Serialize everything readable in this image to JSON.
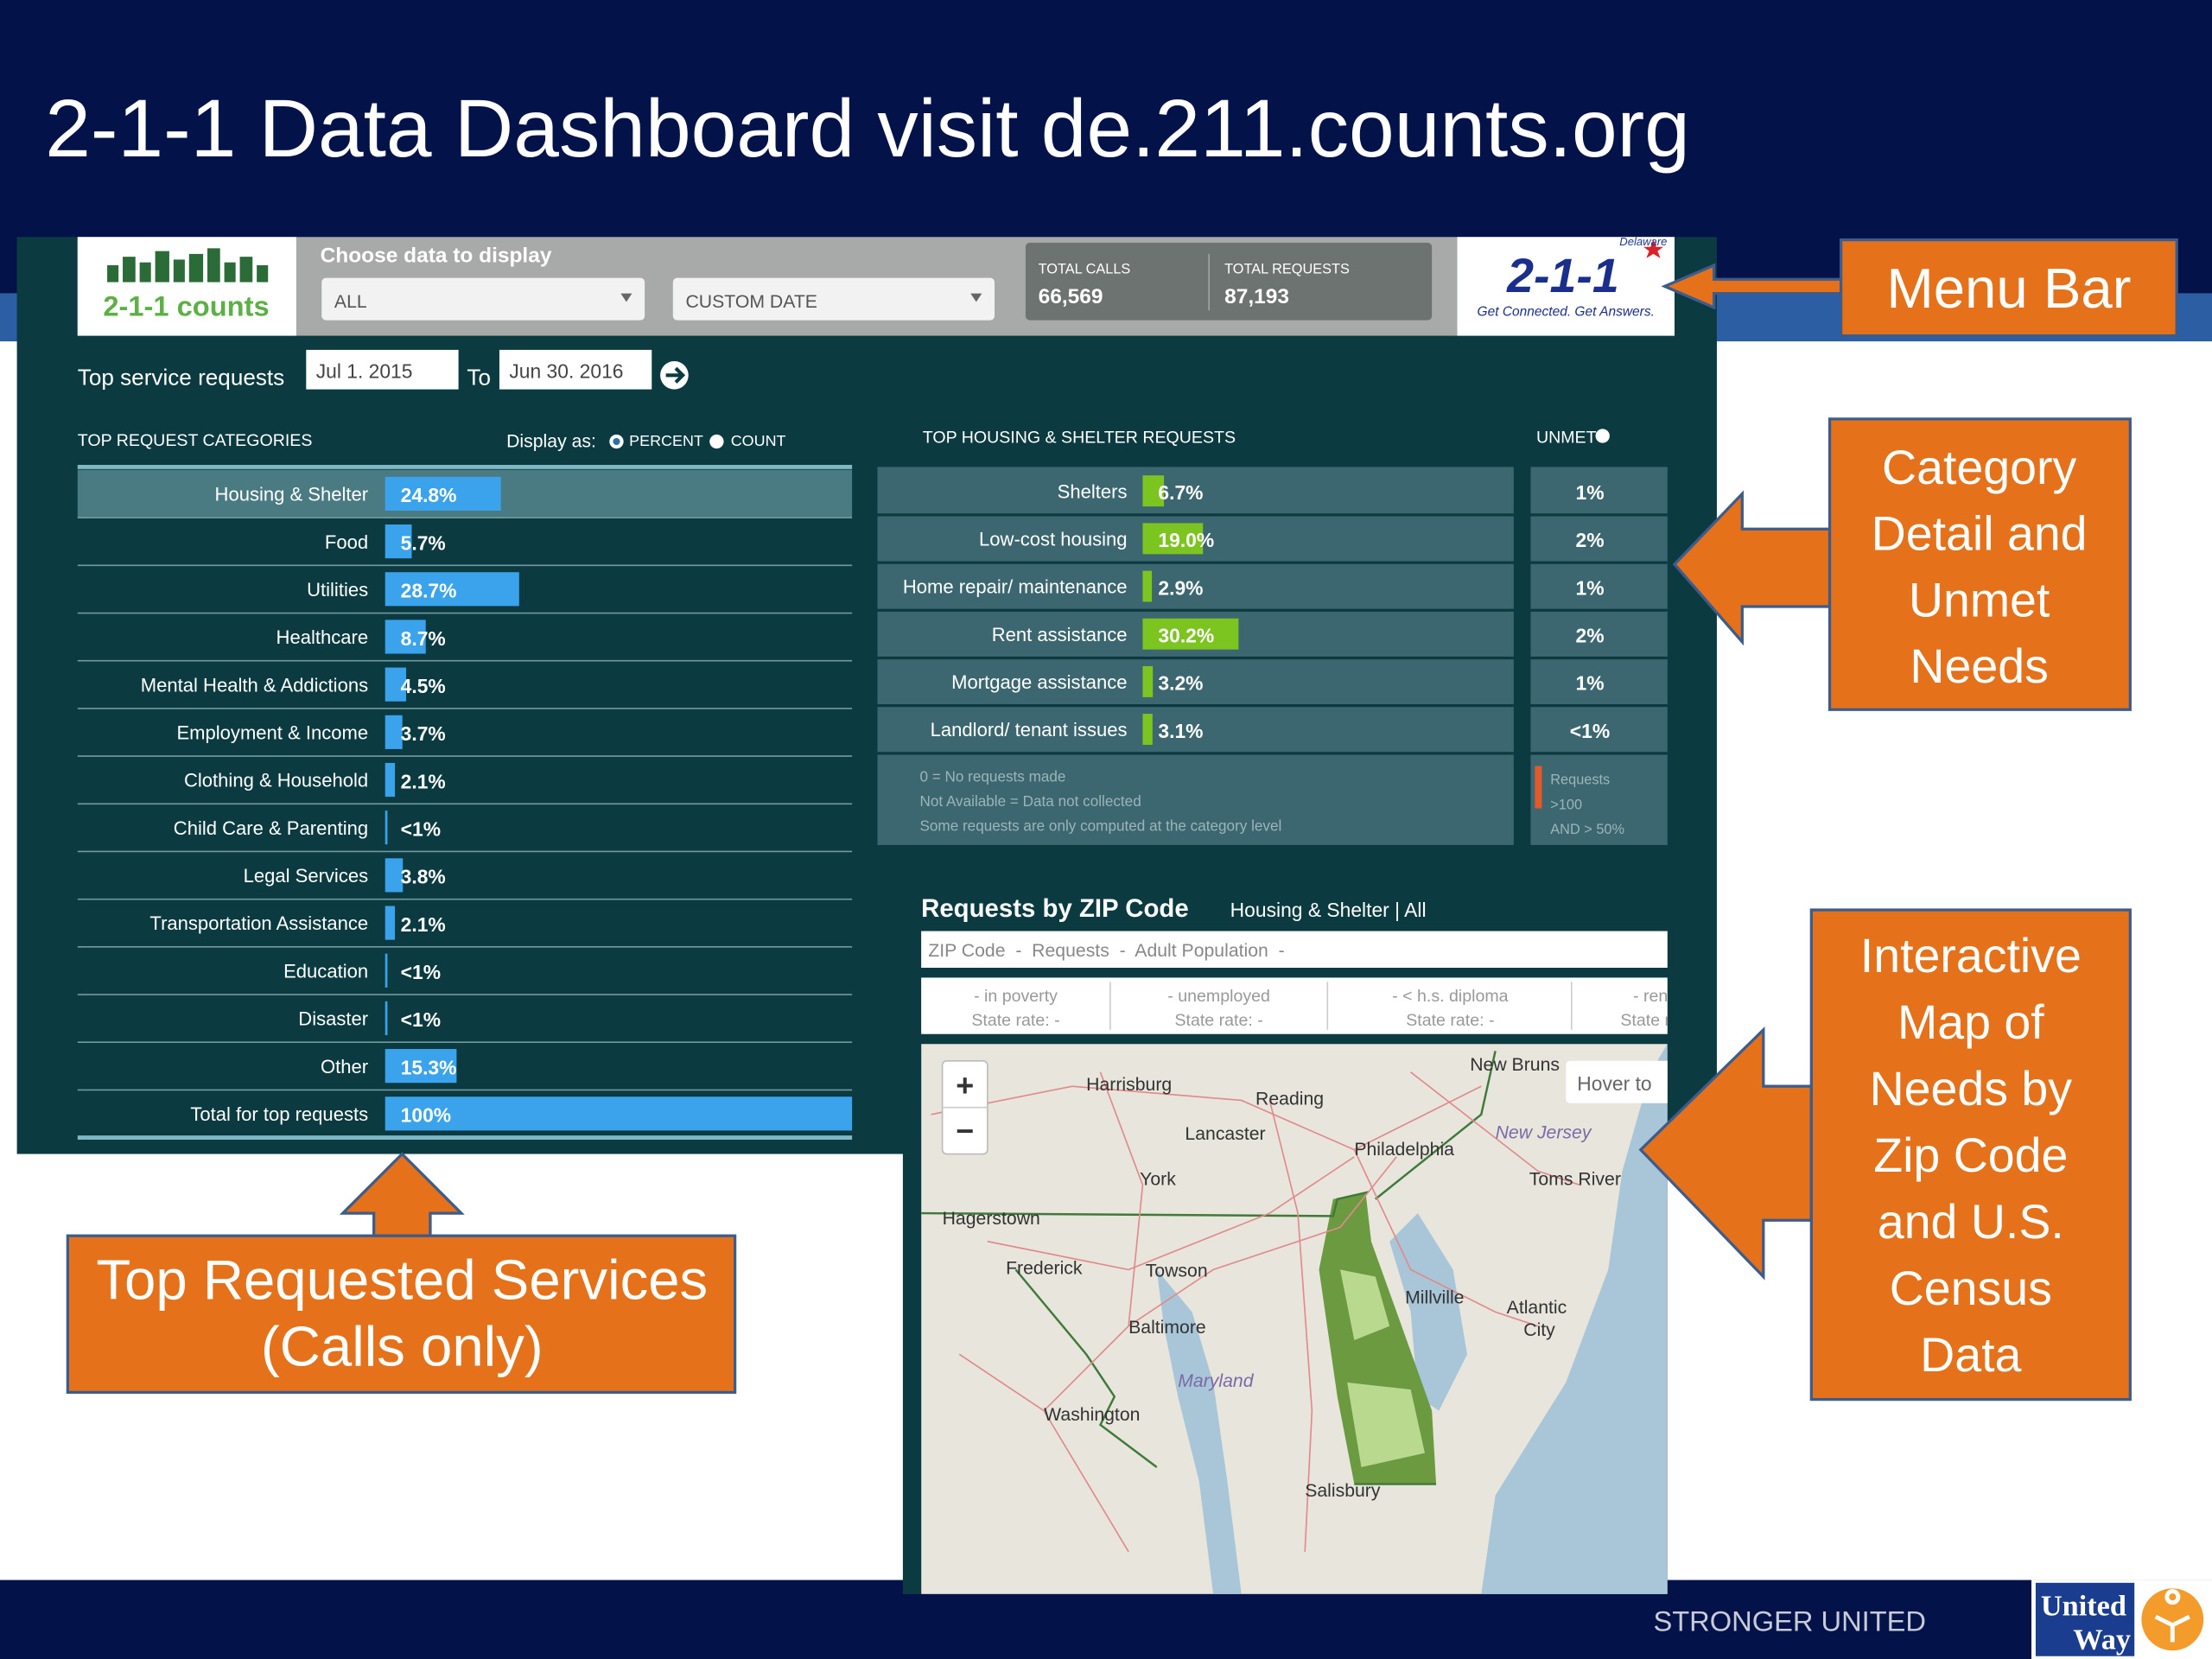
{
  "slide": {
    "title": "2-1-1 Data Dashboard visit de.211.counts.org",
    "footer": "STRONGER UNITED",
    "logo": [
      "United",
      "Way"
    ]
  },
  "menu_bar": {
    "logo": "2-1-1 counts",
    "prompt": "Choose data to display",
    "dropdowns": [
      "ALL",
      "CUSTOM DATE"
    ],
    "totals": [
      {
        "label": "TOTAL CALLS",
        "value": "66,569"
      },
      {
        "label": "TOTAL REQUESTS",
        "value": "87,193"
      }
    ],
    "brand": {
      "state": "Delaware",
      "name": "2-1-1",
      "tagline": "Get Connected. Get Answers."
    }
  },
  "filters": {
    "label": "Top service requests",
    "from": "Jul 1. 2015",
    "to_label": "To",
    "to": "Jun 30. 2016"
  },
  "categories": {
    "title": "TOP REQUEST CATEGORIES",
    "display_label": "Display as:",
    "options": [
      "PERCENT",
      "COUNT"
    ],
    "color": "#3aa3ec",
    "rows": [
      {
        "name": "Housing & Shelter",
        "value": 24.8,
        "value_label": "24.8%"
      },
      {
        "name": "Food",
        "value": 5.7,
        "value_label": "5.7%"
      },
      {
        "name": "Utilities",
        "value": 28.7,
        "value_label": "28.7%"
      },
      {
        "name": "Healthcare",
        "value": 8.7,
        "value_label": "8.7%"
      },
      {
        "name": "Mental Health & Addictions",
        "value": 4.5,
        "value_label": "4.5%"
      },
      {
        "name": "Employment & Income",
        "value": 3.7,
        "value_label": "3.7%"
      },
      {
        "name": "Clothing & Household",
        "value": 2.1,
        "value_label": "2.1%"
      },
      {
        "name": "Child Care & Parenting",
        "value": 0.5,
        "value_label": "<1%"
      },
      {
        "name": "Legal Services",
        "value": 3.8,
        "value_label": "3.8%"
      },
      {
        "name": "Transportation Assistance",
        "value": 2.1,
        "value_label": "2.1%"
      },
      {
        "name": "Education",
        "value": 0.5,
        "value_label": "<1%"
      },
      {
        "name": "Disaster",
        "value": 0.5,
        "value_label": "<1%"
      },
      {
        "name": "Other",
        "value": 15.3,
        "value_label": "15.3%"
      },
      {
        "name": "Total for top requests",
        "value": 100,
        "value_label": "100%"
      }
    ]
  },
  "housing": {
    "title": "TOP HOUSING & SHELTER REQUESTS",
    "unmet_title": "UNMET",
    "color": "#7cc520",
    "rows": [
      {
        "name": "Shelters",
        "value": 6.7,
        "value_label": "6.7%",
        "unmet": "1%"
      },
      {
        "name": "Low-cost housing",
        "value": 19.0,
        "value_label": "19.0%",
        "unmet": "2%"
      },
      {
        "name": "Home repair/ maintenance",
        "value": 2.9,
        "value_label": "2.9%",
        "unmet": "1%"
      },
      {
        "name": "Rent assistance",
        "value": 30.2,
        "value_label": "30.2%",
        "unmet": "2%"
      },
      {
        "name": "Mortgage assistance",
        "value": 3.2,
        "value_label": "3.2%",
        "unmet": "1%"
      },
      {
        "name": "Landlord/ tenant issues",
        "value": 3.1,
        "value_label": "3.1%",
        "unmet": "<1%"
      }
    ],
    "notes": [
      "0 = No requests made",
      "Not Available = Data not collected",
      "Some requests are only computed at the category level"
    ],
    "unmet_legend": [
      "Requests",
      ">100",
      "AND > 50%"
    ]
  },
  "zip": {
    "title": "Requests by ZIP Code",
    "subtitle": "Housing & Shelter | All",
    "summary": "ZIP Code  -  Requests  -  Adult Population  -",
    "census": [
      {
        "stat": "- in poverty",
        "rate": "State rate: -"
      },
      {
        "stat": "- unemployed",
        "rate": "State rate: -"
      },
      {
        "stat": "- < h.s. diploma",
        "rate": "State rate: -"
      },
      {
        "stat": "- renters",
        "rate": "State rate: -"
      }
    ],
    "map": {
      "zoom": [
        "+",
        "−"
      ],
      "hover": "Hover to",
      "places": [
        "Harrisburg",
        "Reading",
        "New Bruns",
        "Lancaster",
        "Philadelphia",
        "New Jersey",
        "Toms River",
        "York",
        "Hagerstown",
        "Frederick",
        "Towson",
        "Baltimore",
        "Maryland",
        "Washington",
        "Millville",
        "Atlantic",
        "City",
        "Salisbury"
      ]
    }
  },
  "callouts": {
    "menu_bar": [
      "Menu Bar"
    ],
    "category": [
      "Category",
      "Detail and",
      "Unmet",
      "Needs"
    ],
    "map": [
      "Interactive",
      "Map of",
      "Needs by",
      "Zip Code",
      "and U.S.",
      "Census",
      "Data"
    ],
    "top": [
      "Top Requested Services",
      "(Calls only)"
    ]
  }
}
